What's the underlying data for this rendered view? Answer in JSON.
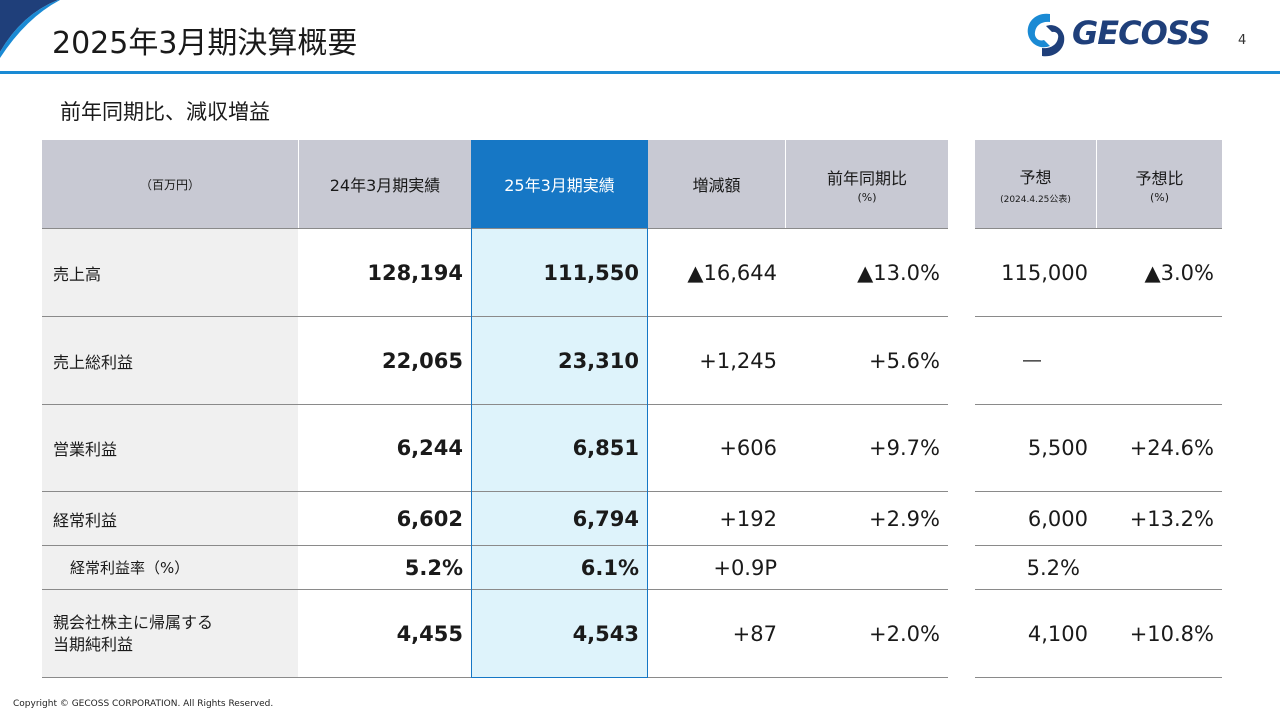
{
  "slide": {
    "title": "2025年3月期決算概要",
    "page_number": "4",
    "subtitle": "前年同期比、減収増益",
    "copyright": "Copyright © GECOSS CORPORATION. All Rights Reserved."
  },
  "logo": {
    "text": "GECOSS",
    "colors": {
      "blue": "#1a8ad4",
      "navy": "#1f3f7a"
    }
  },
  "table": {
    "headers": {
      "unit": "（百万円）",
      "prev": "24年3月期実績",
      "curr": "25年3月期実績",
      "diff": "増減額",
      "yoy": "前年同期比",
      "yoy_sub": "(%)",
      "forecast": "予想",
      "forecast_sub": "(2024.4.25公表)",
      "vs_forecast": "予想比",
      "vs_forecast_sub": "(%)"
    },
    "rows": [
      {
        "label": "売上高",
        "prev": "128,194",
        "curr": "111,550",
        "diff": "▲16,644",
        "yoy": "▲13.0%",
        "forecast": "115,000",
        "vs_forecast": "▲3.0%"
      },
      {
        "label": "売上総利益",
        "prev": "22,065",
        "curr": "23,310",
        "diff": "+1,245",
        "yoy": "+5.6%",
        "forecast": "―",
        "vs_forecast": ""
      },
      {
        "label": "営業利益",
        "prev": "6,244",
        "curr": "6,851",
        "diff": "+606",
        "yoy": "+9.7%",
        "forecast": "5,500",
        "vs_forecast": "+24.6%"
      },
      {
        "label": "経常利益",
        "prev": "6,602",
        "curr": "6,794",
        "diff": "+192",
        "yoy": "+2.9%",
        "forecast": "6,000",
        "vs_forecast": "+13.2%"
      },
      {
        "label": "経常利益率（%）",
        "prev": "5.2%",
        "curr": "6.1%",
        "diff": "+0.9P",
        "yoy": "",
        "forecast": "5.2%",
        "vs_forecast": ""
      },
      {
        "label_line1": "親会社株主に帰属する",
        "label_line2": "当期純利益",
        "prev": "4,455",
        "curr": "4,543",
        "diff": "+87",
        "yoy": "+2.0%",
        "forecast": "4,100",
        "vs_forecast": "+10.8%"
      }
    ],
    "colors": {
      "header_bg": "#c8c9d3",
      "highlight_header": "#1677c5",
      "highlight_cell": "#def3fb",
      "label_bg": "#f0f0f0"
    }
  }
}
